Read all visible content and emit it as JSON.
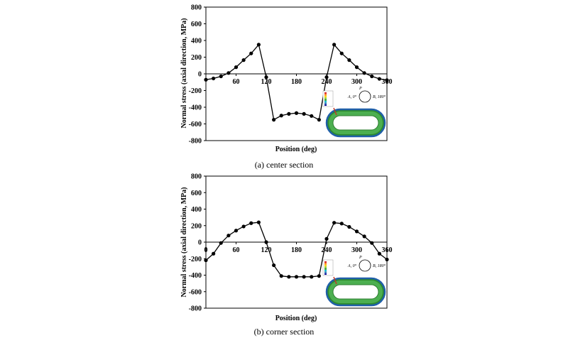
{
  "figure": {
    "charts_title": ""
  },
  "chart_data": [
    {
      "type": "line",
      "caption": "(a)  center  section",
      "xlabel": "Position (deg)",
      "ylabel": "Normal stress (axial direction, MPa)",
      "xlim": [
        0,
        360
      ],
      "ylim": [
        -800,
        800
      ],
      "xticks": [
        60,
        120,
        180,
        240,
        300,
        360
      ],
      "yticks": [
        800,
        600,
        400,
        200,
        0,
        -200,
        -400,
        -600,
        -800
      ],
      "x": [
        0,
        15,
        30,
        45,
        60,
        75,
        90,
        105,
        120,
        135,
        150,
        165,
        180,
        195,
        210,
        225,
        240,
        255,
        270,
        285,
        300,
        315,
        330,
        345,
        360
      ],
      "y": [
        -70,
        -55,
        -30,
        10,
        80,
        165,
        245,
        350,
        -40,
        -550,
        -500,
        -480,
        -470,
        -480,
        -505,
        -550,
        -40,
        350,
        245,
        165,
        80,
        10,
        -30,
        -60,
        -75
      ],
      "grid": false,
      "inset": {
        "label_a": "A, 0°",
        "label_b": "B, 180°",
        "label_p": "P"
      }
    },
    {
      "type": "line",
      "caption": "(b)  corner  section",
      "xlabel": "Position (deg)",
      "ylabel": "Normal stress (axial direction, MPa)",
      "xlim": [
        0,
        360
      ],
      "ylim": [
        -800,
        800
      ],
      "xticks": [
        0,
        60,
        120,
        180,
        240,
        300,
        360
      ],
      "yticks": [
        800,
        600,
        400,
        200,
        0,
        -200,
        -400,
        -600,
        -800
      ],
      "x": [
        0,
        15,
        30,
        45,
        60,
        75,
        90,
        105,
        120,
        135,
        150,
        165,
        180,
        195,
        210,
        225,
        240,
        255,
        270,
        285,
        300,
        315,
        330,
        345,
        360
      ],
      "y": [
        -220,
        -140,
        -10,
        80,
        140,
        190,
        230,
        240,
        0,
        -280,
        -410,
        -420,
        -420,
        -420,
        -420,
        -410,
        40,
        235,
        225,
        185,
        130,
        70,
        -10,
        -140,
        -210
      ],
      "grid": false,
      "inset": {
        "label_a": "A, 0°",
        "label_b": "B, 180°",
        "label_p": "P"
      }
    }
  ]
}
